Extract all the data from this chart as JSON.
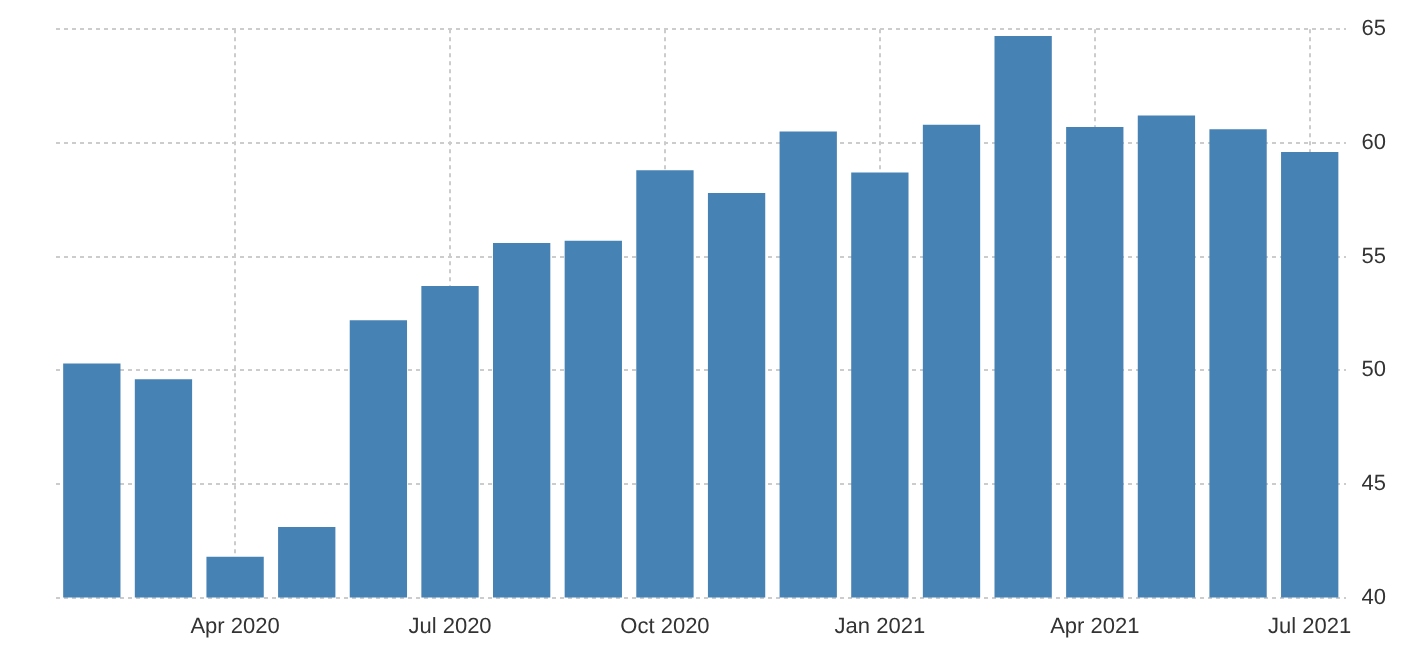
{
  "chart_data": {
    "type": "bar",
    "categories": [
      null,
      null,
      "Apr 2020",
      null,
      null,
      "Jul 2020",
      null,
      null,
      "Oct 2020",
      null,
      null,
      "Jan 2021",
      null,
      null,
      "Apr 2021",
      null,
      null,
      "Jul 2021"
    ],
    "values": [
      50.3,
      49.6,
      41.8,
      43.1,
      52.2,
      53.7,
      55.6,
      55.7,
      58.8,
      57.8,
      60.5,
      58.7,
      60.8,
      64.7,
      60.7,
      61.2,
      60.6,
      59.6
    ],
    "color": "#4682b4",
    "ylim": [
      40,
      65
    ],
    "yticks": [
      40,
      45,
      50,
      55,
      60,
      65
    ],
    "grid": true
  }
}
